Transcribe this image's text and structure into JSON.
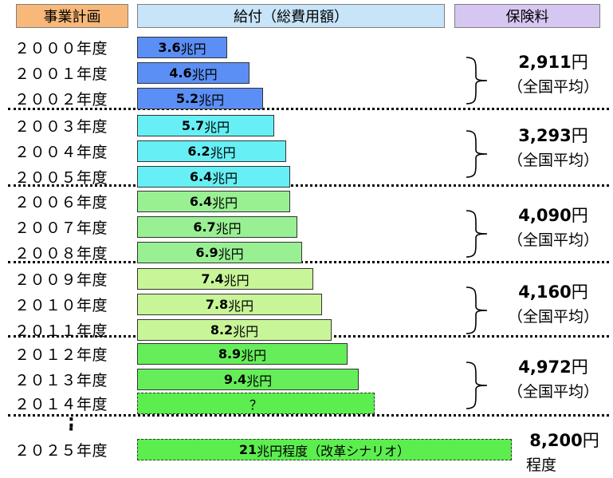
{
  "headers": {
    "plan": "事業計画",
    "benefit": "給付（総費用額）",
    "premium": "保険料"
  },
  "unit_suffix": "兆円",
  "yen_suffix": "円",
  "premium_note": "（全国平均）",
  "colors": {
    "group1": "#5b8ff5",
    "group2": "#66f0f5",
    "group3": "#99f093",
    "group4": "#c8f598",
    "group5": "#66ee5a",
    "dashed": "#5cee4f"
  },
  "chart_data": {
    "type": "bar",
    "categories": [
      "２０００年度",
      "２００１年度",
      "２００２年度",
      "２００３年度",
      "２００４年度",
      "２００５年度",
      "２００６年度",
      "２００７年度",
      "２００８年度",
      "２００９年度",
      "２０１０年度",
      "２０１１年度",
      "２０１２年度",
      "２０１３年度",
      "２０１４年度",
      "２０２５年度"
    ],
    "values": [
      3.6,
      4.6,
      5.2,
      5.7,
      6.2,
      6.4,
      6.4,
      6.7,
      6.9,
      7.4,
      7.8,
      8.2,
      8.9,
      9.4,
      null,
      21
    ],
    "value_labels": [
      "3.6",
      "4.6",
      "5.2",
      "5.7",
      "6.2",
      "6.4",
      "6.4",
      "6.7",
      "6.9",
      "7.4",
      "7.8",
      "8.2",
      "8.9",
      "9.4",
      "？",
      "21"
    ],
    "last_label_suffix": "程度（改革シナリオ）",
    "premiums": [
      {
        "amount": "2,911",
        "note": "（全国平均）"
      },
      {
        "amount": "3,293",
        "note": "（全国平均）"
      },
      {
        "amount": "4,090",
        "note": "（全国平均）"
      },
      {
        "amount": "4,160",
        "note": "（全国平均）"
      },
      {
        "amount": "4,972",
        "note": "（全国平均）"
      },
      {
        "amount": "8,200",
        "note": "程度"
      }
    ]
  }
}
